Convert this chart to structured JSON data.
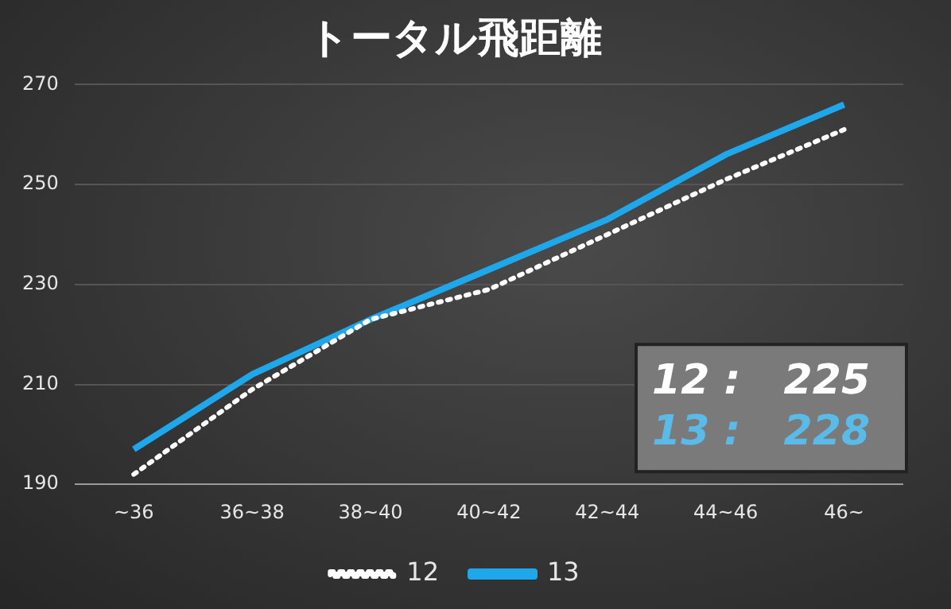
{
  "chart_data": {
    "type": "line",
    "title": "トータル飛距離",
    "categories": [
      "~36",
      "36~38",
      "38~40",
      "40~42",
      "42~44",
      "44~46",
      "46~"
    ],
    "series": [
      {
        "name": "12",
        "color": "#ffffff",
        "line_style": "dotted",
        "values": [
          192,
          209,
          223,
          229,
          240,
          251,
          261
        ]
      },
      {
        "name": "13",
        "color": "#1ea7ea",
        "line_style": "solid",
        "values": [
          197,
          212,
          223,
          233,
          243,
          256,
          266
        ]
      }
    ],
    "ylim": [
      190,
      270
    ],
    "yticks": [
      190,
      210,
      230,
      250,
      270
    ],
    "grid": "y",
    "legend": "bottom",
    "marker": "none",
    "annotations": [
      "12 :   225",
      "13 :   228"
    ]
  }
}
